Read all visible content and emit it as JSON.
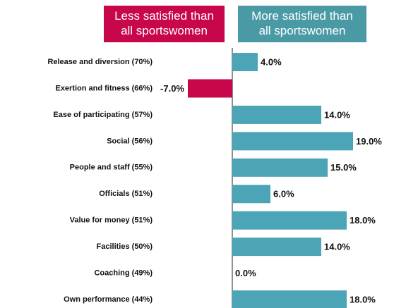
{
  "chart_data": {
    "type": "bar",
    "orientation": "horizontal",
    "annotations": [
      "Less satisfied than all sportswomen",
      "More satisfied than all sportswomen"
    ],
    "categories": [
      "Release and diversion (70%)",
      "Exertion and fitness (66%)",
      "Ease of participating (57%)",
      "Social (56%)",
      "People and staff (55%)",
      "Officials (51%)",
      "Value for money (51%)",
      "Facilities (50%)",
      "Coaching (49%)",
      "Own performance (44%)"
    ],
    "values": [
      4,
      -7,
      14,
      19,
      15,
      6,
      18,
      14,
      0,
      18
    ],
    "value_labels": [
      "4.0%",
      "-7.0%",
      "14.0%",
      "19.0%",
      "15.0%",
      "6.0%",
      "18.0%",
      "14.0%",
      "0.0%",
      "18.0%"
    ],
    "positive_color": "#4ba5b6",
    "negative_color": "#c8064b",
    "xlim": [
      -20,
      20
    ]
  }
}
